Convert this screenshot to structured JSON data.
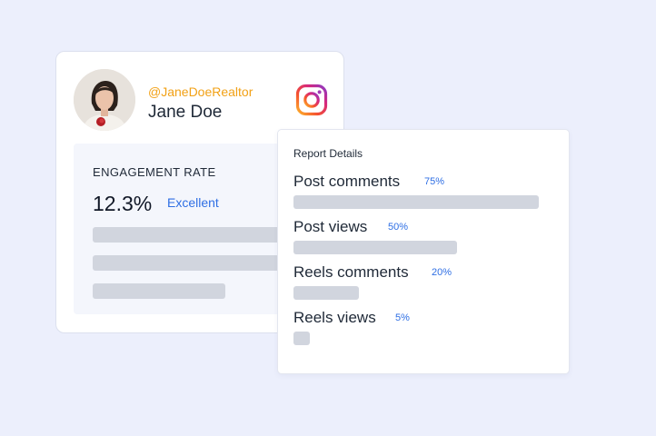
{
  "profile": {
    "handle": "@JaneDoeRealtor",
    "name": "Jane Doe",
    "platform_icon": "instagram-icon",
    "handle_color": "#F2A116"
  },
  "engagement": {
    "title": "ENGAGEMENT RATE",
    "value": "12.3%",
    "rating": "Excellent",
    "rating_color": "#2F6FE4"
  },
  "report": {
    "title": "Report Details",
    "items": [
      {
        "label": "Post comments",
        "percent_label": "75%",
        "value": 75
      },
      {
        "label": "Post views",
        "percent_label": "50%",
        "value": 50
      },
      {
        "label": "Reels comments",
        "percent_label": "20%",
        "value": 20
      },
      {
        "label": "Reels views",
        "percent_label": "5%",
        "value": 5
      }
    ]
  },
  "colors": {
    "background": "#ECEFFC",
    "accent_blue": "#2F6FE4",
    "skeleton": "#D1D5DE"
  }
}
